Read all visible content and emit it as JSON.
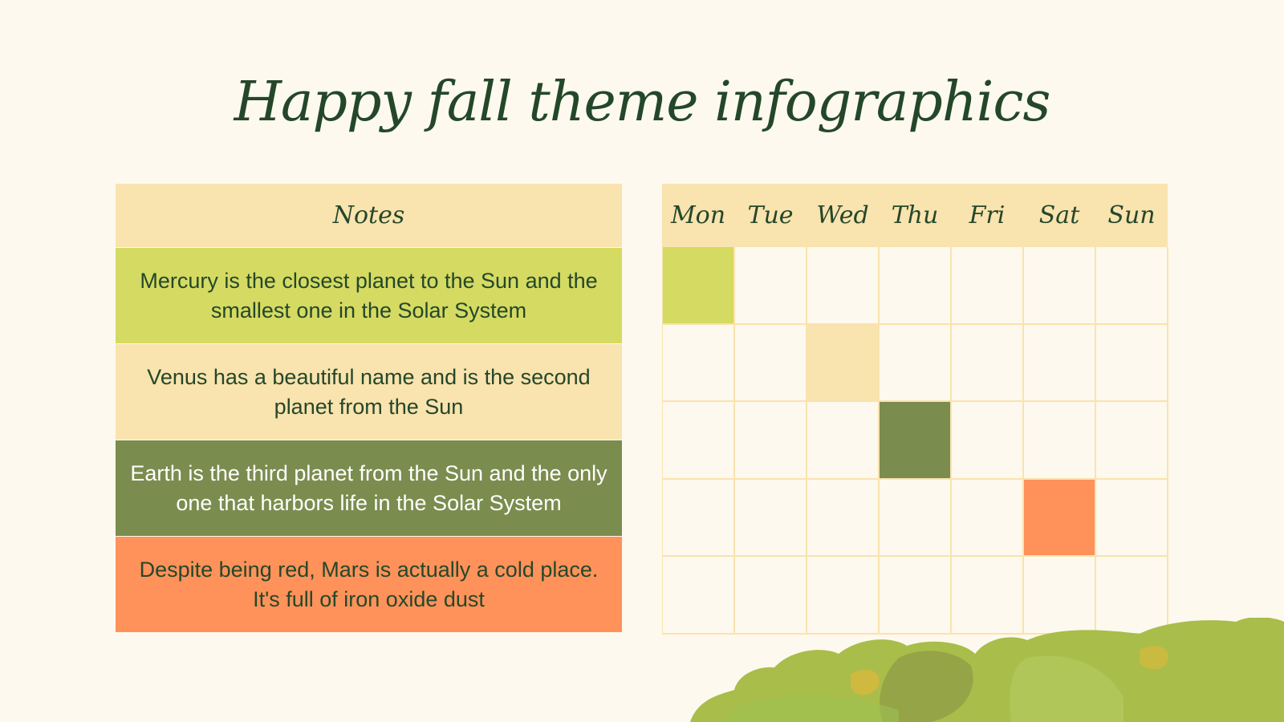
{
  "title": "Happy fall theme infographics",
  "notes": {
    "header": "Notes",
    "items": [
      {
        "text": "Mercury is the closest planet to the Sun and the smallest one in the Solar System",
        "color": "#d5da62",
        "text_color": "#24472a"
      },
      {
        "text": "Venus has a beautiful name and is the second planet from the Sun",
        "color": "#f9e3ae",
        "text_color": "#24472a"
      },
      {
        "text": "Earth is the third planet from the Sun and the only one that harbors life in the Solar System",
        "color": "#7b8c4f",
        "text_color": "#ffffff"
      },
      {
        "text": "Despite being red, Mars is actually a cold place. It's full of iron oxide dust",
        "color": "#fe925a",
        "text_color": "#24472a"
      }
    ]
  },
  "calendar": {
    "days": [
      "Mon",
      "Tue",
      "Wed",
      "Thu",
      "Fri",
      "Sat",
      "Sun"
    ],
    "rows": 5,
    "highlights": [
      {
        "row": 0,
        "col": 0,
        "color": "#d5da62"
      },
      {
        "row": 1,
        "col": 2,
        "color": "#f9e3ae"
      },
      {
        "row": 2,
        "col": 3,
        "color": "#7b8c4f"
      },
      {
        "row": 3,
        "col": 5,
        "color": "#fe925a"
      }
    ]
  }
}
